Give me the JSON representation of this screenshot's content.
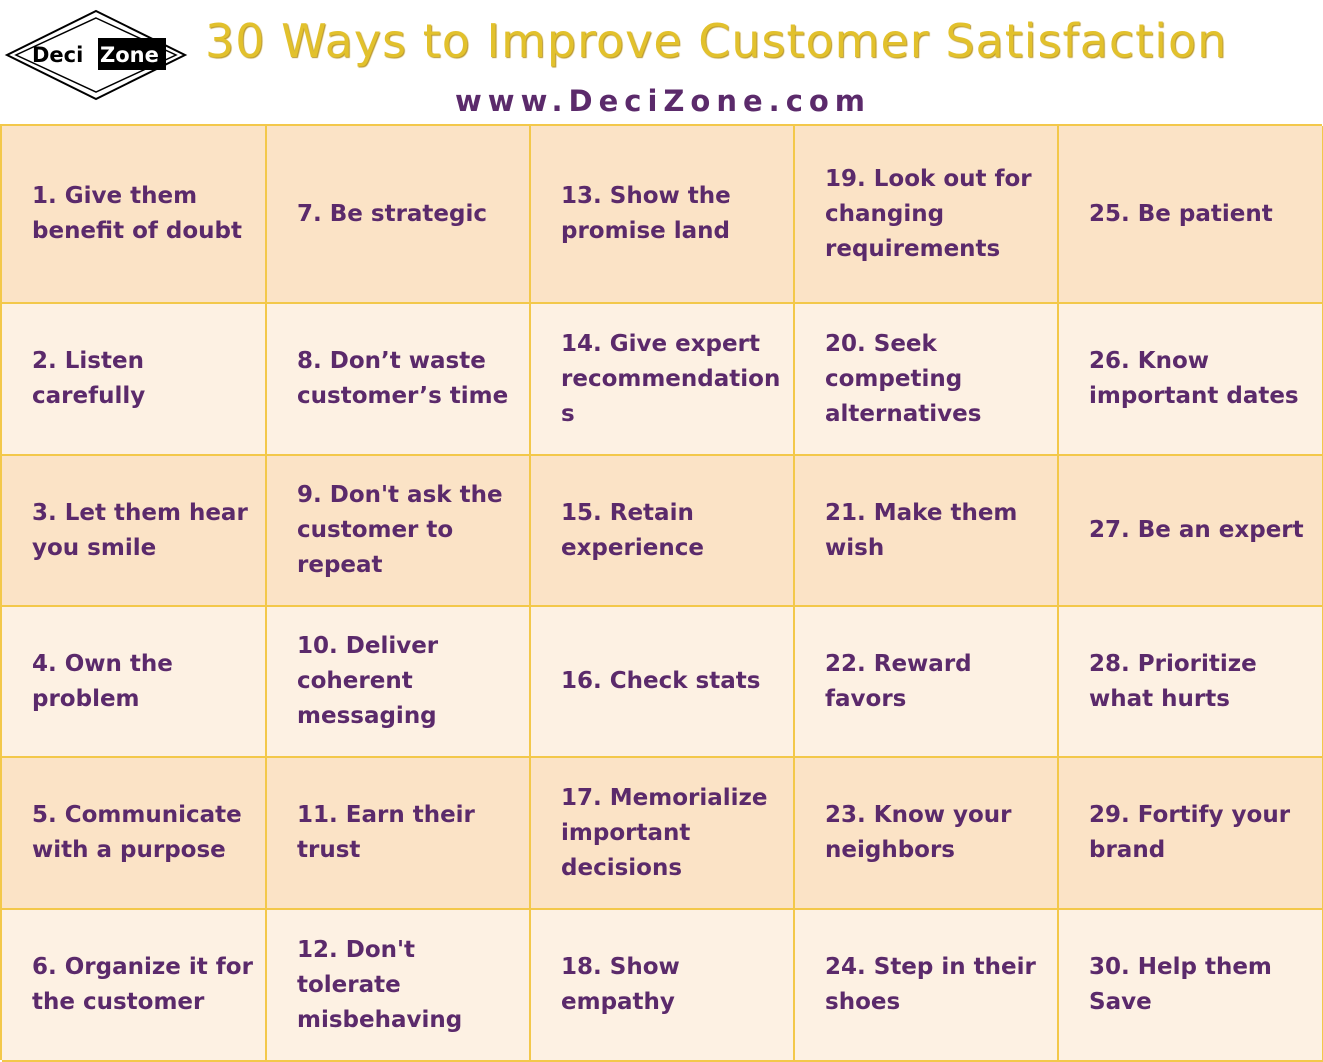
{
  "header": {
    "logo_text_left": "Deci",
    "logo_text_right": "Zone",
    "title": "30 Ways to Improve Customer Satisfaction",
    "url": "www.DeciZone.com"
  },
  "colors": {
    "title": "#e2c12c",
    "text": "#5b2a6b",
    "border": "#f3c84a",
    "row_dark": "#fbe3c6",
    "row_light": "#fdf1e3"
  },
  "grid": {
    "rows": [
      [
        "1. Give them benefit of doubt",
        "7. Be strategic",
        "13. Show the promise land",
        "19. Look out for changing requirements",
        "25. Be patient"
      ],
      [
        "2. Listen carefully",
        "8. Don’t waste customer’s time",
        "14. Give expert recommendations",
        "20. Seek competing alternatives",
        "26. Know important dates"
      ],
      [
        "3. Let them hear you smile",
        "9. Don't ask the customer to repeat",
        "15. Retain experience",
        "21. Make them wish",
        "27. Be an expert"
      ],
      [
        "4. Own the problem",
        "10. Deliver coherent messaging",
        "16. Check stats",
        "22. Reward favors",
        "28. Prioritize what hurts"
      ],
      [
        "5. Communicate with a purpose",
        "11. Earn their trust",
        "17. Memorialize important decisions",
        "23. Know your neighbors",
        "29. Fortify your brand"
      ],
      [
        "6. Organize it for the customer",
        "12. Don't tolerate misbehaving",
        "18. Show empathy",
        "24. Step in their shoes",
        "30. Help them Save"
      ]
    ]
  }
}
